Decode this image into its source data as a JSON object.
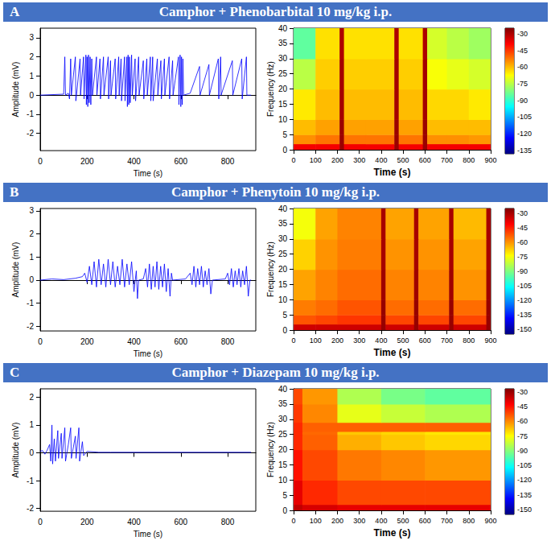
{
  "chart_data": [
    {
      "panel": "A",
      "type": "line",
      "title": "Camphor + Phenobarbital 10 mg/kg i.p.",
      "x_label": "Time (s)",
      "y_label": "Amplitude (mV)",
      "color": "#0000ff",
      "grid": false,
      "xlim": [
        0,
        920
      ],
      "xticks": [
        0,
        200,
        400,
        600,
        800
      ],
      "ylim": [
        -2.9,
        3.5
      ],
      "yticks": [
        -2,
        -1,
        0,
        1,
        2,
        3
      ],
      "x": [
        0,
        100,
        105,
        108,
        120,
        125,
        130,
        133,
        150,
        152,
        155,
        170,
        172,
        185,
        187,
        195,
        197,
        200,
        203,
        206,
        209,
        213,
        216,
        220,
        223,
        240,
        242,
        255,
        257,
        270,
        272,
        290,
        292,
        300,
        302,
        320,
        322,
        335,
        337,
        345,
        347,
        360,
        362,
        370,
        372,
        375,
        378,
        381,
        384,
        390,
        393,
        405,
        407,
        420,
        422,
        440,
        442,
        455,
        457,
        470,
        472,
        480,
        482,
        500,
        502,
        515,
        517,
        530,
        532,
        550,
        552,
        565,
        567,
        590,
        592,
        597,
        600,
        603,
        606,
        609,
        612,
        640,
        680,
        682,
        720,
        722,
        760,
        762,
        770,
        772,
        820,
        822,
        860,
        862,
        880,
        882,
        900
      ],
      "values": [
        0,
        0.05,
        2,
        0,
        0.1,
        -0.2,
        1.9,
        0,
        2,
        -0.3,
        0,
        1.9,
        0,
        2,
        -0.2,
        2.1,
        -0.5,
        2,
        -0.6,
        2.1,
        -0.4,
        2,
        -0.5,
        1.9,
        0,
        2,
        0,
        1.9,
        -0.2,
        2,
        0,
        2,
        -0.2,
        1.8,
        0,
        1.9,
        -0.2,
        2,
        0,
        1.9,
        -0.3,
        2,
        -0.3,
        2,
        -0.6,
        2.1,
        -0.5,
        2,
        -0.4,
        2.1,
        0,
        1.9,
        -0.3,
        2,
        0,
        1.8,
        -0.2,
        1.9,
        0,
        2,
        -0.3,
        2,
        -0.3,
        1.9,
        0,
        1.8,
        -0.2,
        1.9,
        0,
        2,
        -0.2,
        1.8,
        0,
        2,
        -0.5,
        2.1,
        -0.6,
        2,
        -0.5,
        1.9,
        0,
        0.1,
        1.5,
        0,
        1.6,
        0,
        1.9,
        -0.2,
        2,
        0,
        1.8,
        0,
        1.9,
        -0.2,
        2,
        0,
        0
      ]
    },
    {
      "panel": "A",
      "type": "heatmap",
      "x_label": "Time (s)",
      "y_label": "Frequency (Hz)",
      "xlim": [
        0,
        900
      ],
      "xticks": [
        0,
        100,
        200,
        300,
        400,
        500,
        600,
        700,
        800,
        900
      ],
      "ylim": [
        0,
        40
      ],
      "yticks": [
        0,
        5,
        10,
        15,
        20,
        25,
        30,
        35,
        40
      ],
      "time_bins": [
        0,
        100,
        210,
        230,
        330,
        460,
        480,
        590,
        610,
        700,
        800,
        900
      ],
      "freq_bins": [
        0,
        2,
        5,
        10,
        20,
        30,
        40
      ],
      "power": [
        [
          -38,
          -38,
          -28,
          -38,
          -38,
          -28,
          -38,
          -28,
          -38,
          -38,
          -38
        ],
        [
          -55,
          -52,
          -28,
          -52,
          -52,
          -28,
          -52,
          -28,
          -55,
          -55,
          -56
        ],
        [
          -60,
          -57,
          -28,
          -57,
          -57,
          -28,
          -57,
          -28,
          -60,
          -60,
          -60
        ],
        [
          -65,
          -60,
          -29,
          -60,
          -60,
          -29,
          -60,
          -29,
          -63,
          -63,
          -65
        ],
        [
          -75,
          -62,
          -29,
          -62,
          -62,
          -29,
          -62,
          -29,
          -68,
          -70,
          -72
        ],
        [
          -85,
          -64,
          -30,
          -64,
          -64,
          -30,
          -64,
          -30,
          -72,
          -75,
          -78
        ]
      ],
      "colorbar_range": [
        -138,
        -25
      ],
      "colorbar_ticks": [
        -30,
        -45,
        -60,
        -75,
        -90,
        -105,
        -120,
        -135
      ]
    },
    {
      "panel": "B",
      "type": "line",
      "title": "Camphor + Phenytoin 10 mg/kg i.p.",
      "x_label": "Time (s)",
      "y_label": "Amplitude (mV)",
      "color": "#0000ff",
      "grid": false,
      "xlim": [
        0,
        920
      ],
      "xticks": [
        0,
        200,
        400,
        600,
        800
      ],
      "ylim": [
        -2.2,
        3.1
      ],
      "yticks": [
        -2,
        -1,
        0,
        1,
        2,
        3
      ],
      "x": [
        0,
        50,
        100,
        150,
        180,
        190,
        200,
        210,
        220,
        230,
        240,
        250,
        260,
        270,
        280,
        290,
        300,
        310,
        320,
        330,
        340,
        350,
        360,
        370,
        380,
        390,
        400,
        410,
        415,
        420,
        440,
        450,
        458,
        466,
        474,
        482,
        490,
        498,
        506,
        514,
        522,
        530,
        538,
        546,
        554,
        560,
        565,
        620,
        640,
        648,
        656,
        664,
        672,
        680,
        688,
        696,
        704,
        712,
        720,
        728,
        735,
        790,
        800,
        808,
        816,
        824,
        832,
        840,
        848,
        856,
        864,
        872,
        880,
        888,
        895,
        900
      ],
      "values": [
        0,
        0.05,
        0.02,
        0.08,
        0.15,
        0.3,
        -0.1,
        0.6,
        -0.2,
        0.8,
        -0.3,
        0.9,
        -0.2,
        0.7,
        -0.3,
        0.9,
        -0.2,
        0.8,
        -0.3,
        0.6,
        -0.2,
        0.9,
        -0.3,
        0.7,
        -0.2,
        0.8,
        -0.5,
        0.4,
        -0.8,
        0,
        0.05,
        0.5,
        -0.3,
        0.7,
        -0.4,
        0.6,
        -0.3,
        0.8,
        -0.4,
        0.6,
        -0.3,
        0.7,
        -0.5,
        0.5,
        -0.7,
        0.3,
        0,
        0.05,
        0.3,
        -0.2,
        0.6,
        -0.3,
        0.5,
        -0.2,
        0.6,
        -0.3,
        0.4,
        -0.2,
        0.5,
        -0.6,
        0,
        0.05,
        0.3,
        -0.2,
        0.5,
        -0.3,
        0.4,
        -0.2,
        0.5,
        -0.3,
        0.4,
        -0.2,
        0.6,
        -0.7,
        0,
        0
      ]
    },
    {
      "panel": "B",
      "type": "heatmap",
      "x_label": "Time (s)",
      "y_label": "Frequency (Hz)",
      "xlim": [
        0,
        900
      ],
      "xticks": [
        0,
        100,
        200,
        300,
        400,
        500,
        600,
        700,
        800,
        900
      ],
      "ylim": [
        0,
        40
      ],
      "yticks": [
        0,
        5,
        10,
        15,
        20,
        25,
        30,
        35,
        40
      ],
      "time_bins": [
        0,
        100,
        200,
        400,
        420,
        550,
        570,
        710,
        730,
        880,
        900
      ],
      "freq_bins": [
        0,
        2,
        5,
        10,
        20,
        30,
        40
      ],
      "power": [
        [
          -35,
          -35,
          -35,
          -28,
          -35,
          -28,
          -35,
          -28,
          -35,
          -28
        ],
        [
          -52,
          -50,
          -48,
          -28,
          -50,
          -28,
          -50,
          -28,
          -50,
          -28
        ],
        [
          -57,
          -55,
          -52,
          -28,
          -55,
          -28,
          -55,
          -28,
          -55,
          -28
        ],
        [
          -62,
          -58,
          -55,
          -29,
          -58,
          -29,
          -58,
          -29,
          -60,
          -29
        ],
        [
          -68,
          -60,
          -57,
          -30,
          -60,
          -30,
          -60,
          -30,
          -62,
          -30
        ],
        [
          -75,
          -62,
          -58,
          -30,
          -62,
          -30,
          -62,
          -30,
          -65,
          -30
        ]
      ],
      "colorbar_range": [
        -155,
        -25
      ],
      "colorbar_ticks": [
        -30,
        -45,
        -60,
        -75,
        -90,
        -105,
        -120,
        -135,
        -150
      ]
    },
    {
      "panel": "C",
      "type": "line",
      "title": "Camphor + Diazepam  10 mg/kg i.p.",
      "x_label": "Time (s)",
      "y_label": "Amplitude (mV)",
      "color": "#0000ff",
      "grid": false,
      "xlim": [
        0,
        920
      ],
      "xticks": [
        0,
        200,
        400,
        600,
        800
      ],
      "ylim": [
        -2.1,
        2.3
      ],
      "yticks": [
        -2,
        -1,
        0,
        1,
        2
      ],
      "x": [
        0,
        10,
        20,
        30,
        40,
        45,
        50,
        53,
        60,
        65,
        75,
        78,
        90,
        93,
        105,
        108,
        120,
        130,
        133,
        150,
        153,
        165,
        168,
        180,
        185,
        200,
        250,
        300,
        900
      ],
      "values": [
        0.05,
        0.08,
        -0.05,
        0.1,
        0.3,
        -0.3,
        1,
        -0.4,
        0.5,
        -0.3,
        0.8,
        -0.2,
        0.7,
        -0.2,
        0.9,
        -0.3,
        0.3,
        0.9,
        -0.2,
        0.6,
        -0.2,
        0.9,
        -0.3,
        0.4,
        -0.1,
        0.05,
        0.02,
        0.02,
        0.02
      ]
    },
    {
      "panel": "C",
      "type": "heatmap",
      "x_label": "Time (s)",
      "y_label": "Frequency (Hz)",
      "xlim": [
        0,
        900
      ],
      "xticks": [
        0,
        100,
        200,
        300,
        400,
        500,
        600,
        700,
        800,
        900
      ],
      "ylim": [
        0,
        40
      ],
      "yticks": [
        0,
        5,
        10,
        15,
        20,
        25,
        30,
        35,
        40
      ],
      "time_bins": [
        0,
        40,
        200,
        400,
        600,
        900
      ],
      "freq_bins": [
        0,
        2,
        10,
        20,
        25,
        26,
        29,
        35,
        40
      ],
      "power": [
        [
          -35,
          -38,
          -40,
          -40,
          -40
        ],
        [
          -40,
          -48,
          -52,
          -52,
          -52
        ],
        [
          -45,
          -52,
          -58,
          -60,
          -62
        ],
        [
          -48,
          -55,
          -65,
          -68,
          -70
        ],
        [
          -48,
          -56,
          -68,
          -70,
          -72
        ],
        [
          -48,
          -55,
          -55,
          -55,
          -55
        ],
        [
          -50,
          -60,
          -78,
          -82,
          -85
        ],
        [
          -52,
          -62,
          -85,
          -92,
          -95
        ]
      ],
      "colorbar_range": [
        -155,
        -27
      ],
      "colorbar_ticks": [
        -30,
        -45,
        -60,
        -75,
        -90,
        -105,
        -120,
        -135,
        -150
      ]
    }
  ]
}
